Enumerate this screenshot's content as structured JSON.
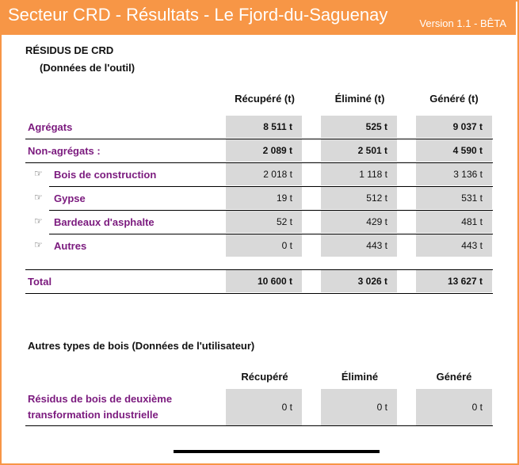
{
  "header": {
    "title": "Secteur CRD - Résultats - Le Fjord-du-Saguenay",
    "version": "Version 1.1 - BÊTA"
  },
  "section1": {
    "title": "RÉSIDUS DE CRD",
    "subtitle": "(Données de l'outil)",
    "columns": [
      "Récupéré (t)",
      "Éliminé (t)",
      "Généré (t)"
    ],
    "rows": [
      {
        "label": "Agrégats",
        "values": [
          "8 511 t",
          "525 t",
          "9 037 t"
        ]
      },
      {
        "label": "Non-agrégats :",
        "values": [
          "2 089 t",
          "2 501 t",
          "4 590 t"
        ]
      },
      {
        "label": "Bois de construction",
        "values": [
          "2 018 t",
          "1 118 t",
          "3 136 t"
        ]
      },
      {
        "label": "Gypse",
        "values": [
          "19 t",
          "512 t",
          "531 t"
        ]
      },
      {
        "label": "Bardeaux d'asphalte",
        "values": [
          "52 t",
          "429 t",
          "481 t"
        ]
      },
      {
        "label": "Autres",
        "values": [
          "0 t",
          "443 t",
          "443 t"
        ]
      }
    ],
    "total": {
      "label": "Total",
      "values": [
        "10 600 t",
        "3 026 t",
        "13 627 t"
      ]
    }
  },
  "section2": {
    "title": "Autres types de bois  (Données de l'utilisateur)",
    "columns": [
      "Récupéré",
      "Éliminé",
      "Généré"
    ],
    "row": {
      "label_line1": "Résidus de bois de deuxième",
      "label_line2": "transformation industrielle",
      "values": [
        "0 t",
        "0 t",
        "0 t"
      ]
    }
  },
  "icons": {
    "sub_item": "hand-pointing-icon"
  },
  "colors": {
    "header": "#f79646",
    "label": "#7b1a7e",
    "cell": "#d9d9d9"
  }
}
